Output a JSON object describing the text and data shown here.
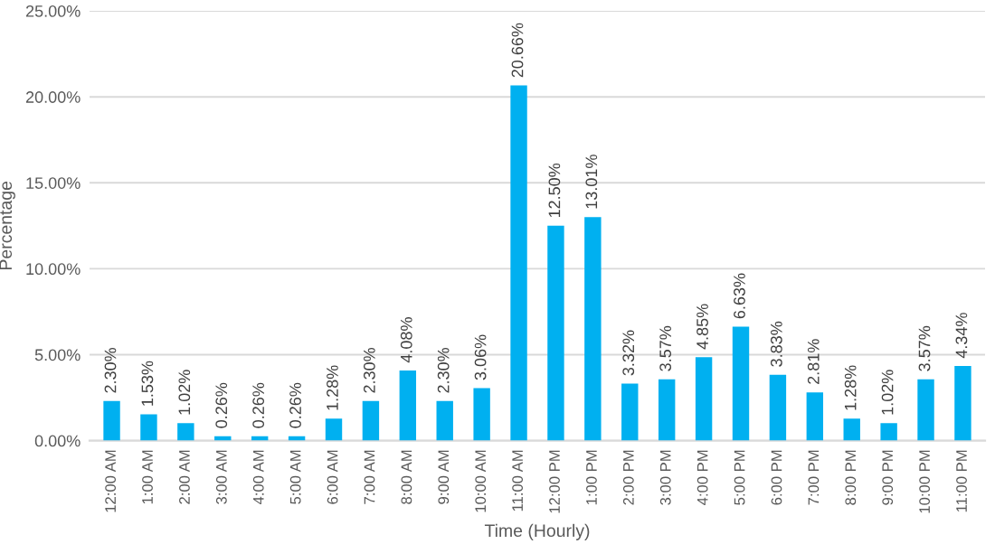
{
  "chart_data": {
    "type": "bar",
    "xlabel": "Time (Hourly)",
    "ylabel": "Percentage",
    "categories": [
      "12:00 AM",
      "1:00 AM",
      "2:00 AM",
      "3:00 AM",
      "4:00 AM",
      "5:00 AM",
      "6:00 AM",
      "7:00 AM",
      "8:00 AM",
      "9:00 AM",
      "10:00 AM",
      "11:00 AM",
      "12:00 PM",
      "1:00 PM",
      "2:00 PM",
      "3:00 PM",
      "4:00 PM",
      "5:00 PM",
      "6:00 PM",
      "7:00 PM",
      "8:00 PM",
      "9:00 PM",
      "10:00 PM",
      "11:00 PM"
    ],
    "values": [
      2.3,
      1.53,
      1.02,
      0.26,
      0.26,
      0.26,
      1.28,
      2.3,
      4.08,
      2.3,
      3.06,
      20.66,
      12.5,
      13.01,
      3.32,
      3.57,
      4.85,
      6.63,
      3.83,
      2.81,
      1.28,
      1.02,
      3.57,
      4.34
    ],
    "value_labels": [
      "2.30%",
      "1.53%",
      "1.02%",
      "0.26%",
      "0.26%",
      "0.26%",
      "1.28%",
      "2.30%",
      "4.08%",
      "2.30%",
      "3.06%",
      "20.66%",
      "12.50%",
      "13.01%",
      "3.32%",
      "3.57%",
      "4.85%",
      "6.63%",
      "3.83%",
      "2.81%",
      "1.28%",
      "1.02%",
      "3.57%",
      "4.34%"
    ],
    "color": "#00b0f0",
    "ylim": [
      0,
      25
    ],
    "yticks": [
      {
        "value": 0,
        "label": "0.00%"
      },
      {
        "value": 5,
        "label": "5.00%"
      },
      {
        "value": 10,
        "label": "10.00%"
      },
      {
        "value": 15,
        "label": "15.00%"
      },
      {
        "value": 20,
        "label": "20.00%"
      },
      {
        "value": 25,
        "label": "25.00%"
      }
    ],
    "grid": "y"
  }
}
